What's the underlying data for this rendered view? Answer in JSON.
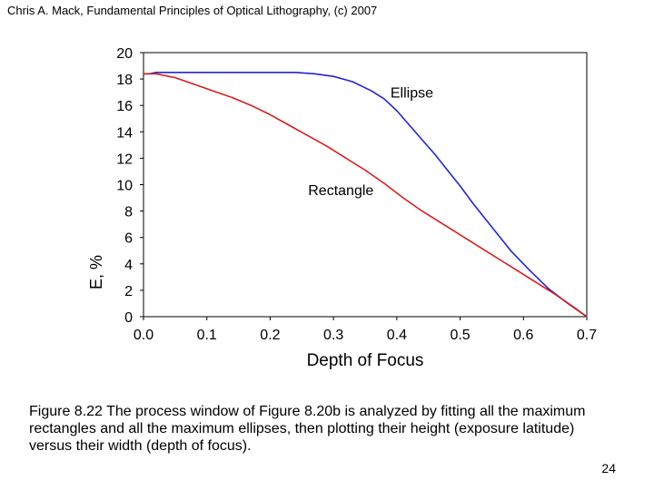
{
  "header": {
    "text": "Chris A. Mack, Fundamental Principles of Optical Lithography, (c) 2007"
  },
  "caption": {
    "text": "Figure 8.22  The process window of Figure 8.20b is analyzed by fitting all the maximum rectangles and all the maximum ellipses, then plotting their height (exposure latitude) versus their width (depth of focus)."
  },
  "page_number": "24",
  "colors": {
    "ellipse": "#2424d0",
    "rectangle": "#d81c1c",
    "frame": "#000000"
  },
  "chart_data": {
    "type": "line",
    "title": "",
    "xlabel": "Depth of Focus",
    "ylabel": "E, %",
    "xlim": [
      0.0,
      0.7
    ],
    "ylim": [
      0,
      20
    ],
    "xticks": [
      "0.0",
      "0.1",
      "0.2",
      "0.3",
      "0.4",
      "0.5",
      "0.6",
      "0.7"
    ],
    "yticks": [
      "0",
      "2",
      "4",
      "6",
      "8",
      "10",
      "12",
      "14",
      "16",
      "18",
      "20"
    ],
    "series": [
      {
        "name": "Ellipse",
        "color_key": "ellipse",
        "x": [
          0.0,
          0.01,
          0.02,
          0.05,
          0.1,
          0.15,
          0.2,
          0.24,
          0.27,
          0.3,
          0.33,
          0.36,
          0.38,
          0.4,
          0.42,
          0.44,
          0.46,
          0.48,
          0.5,
          0.52,
          0.55,
          0.58,
          0.61,
          0.64,
          0.67,
          0.7
        ],
        "y": [
          18.4,
          18.4,
          18.5,
          18.5,
          18.5,
          18.5,
          18.5,
          18.5,
          18.4,
          18.2,
          17.8,
          17.1,
          16.5,
          15.6,
          14.5,
          13.4,
          12.3,
          11.1,
          9.9,
          8.6,
          6.8,
          5.0,
          3.5,
          2.1,
          1.0,
          0.0
        ],
        "label": "Ellipse",
        "label_x": 0.39,
        "label_y": 16.6
      },
      {
        "name": "Rectangle",
        "color_key": "rectangle",
        "x": [
          0.0,
          0.02,
          0.05,
          0.08,
          0.11,
          0.14,
          0.17,
          0.2,
          0.23,
          0.26,
          0.29,
          0.32,
          0.35,
          0.38,
          0.41,
          0.44,
          0.47,
          0.5,
          0.53,
          0.56,
          0.59,
          0.62,
          0.65,
          0.68,
          0.7
        ],
        "y": [
          18.4,
          18.4,
          18.1,
          17.6,
          17.1,
          16.6,
          16.0,
          15.3,
          14.5,
          13.7,
          12.9,
          12.0,
          11.1,
          10.1,
          9.0,
          8.0,
          7.1,
          6.2,
          5.3,
          4.4,
          3.5,
          2.6,
          1.7,
          0.7,
          0.0
        ],
        "label": "Rectangle",
        "label_x": 0.26,
        "label_y": 9.2
      }
    ]
  }
}
